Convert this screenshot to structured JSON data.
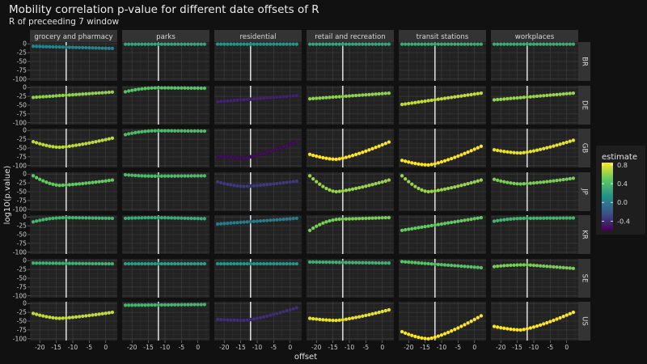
{
  "chart_data": {
    "type": "scatter",
    "title": "Mobility correlation p-value for different date offsets of R",
    "subtitle": "R of preceeding 7 window",
    "xlabel": "offset",
    "ylabel": "log10(p.value)",
    "x": [
      -22,
      -21,
      -20,
      -19,
      -18,
      -17,
      -16,
      -15,
      -14,
      -13,
      -12,
      -11,
      -10,
      -9,
      -8,
      -7,
      -6,
      -5,
      -4,
      -3,
      -2,
      -1,
      0,
      1,
      2
    ],
    "xlim": [
      -23,
      3.5
    ],
    "x_ticks": [
      -20,
      -15,
      -10,
      -5,
      0
    ],
    "x_tick_labels": [
      "-20",
      "-15",
      "-10",
      "-5",
      "0"
    ],
    "ylim": [
      -105,
      5
    ],
    "y_ticks": [
      0,
      -25,
      -50,
      -75,
      -100
    ],
    "y_tick_labels": [
      "0",
      "-25",
      "-50",
      "-75",
      "-100"
    ],
    "reference_line_x": -12,
    "grid": true,
    "columns": [
      "grocery and pharmacy",
      "parks",
      "residential",
      "retail and recreation",
      "transit stations",
      "workplaces"
    ],
    "rows": [
      "BR",
      "DE",
      "GB",
      "JP",
      "KR",
      "SE",
      "US"
    ],
    "color_scale": {
      "name": "estimate",
      "palette": "viridis",
      "ticks": [
        0.8,
        0.4,
        0.0,
        -0.4
      ],
      "tick_labels": [
        "0.8",
        "0.4",
        "0.0",
        "-0.4"
      ],
      "range": [
        -0.6,
        0.85
      ]
    },
    "panel_specs": {
      "BR": {
        "grocery and pharmacy": {
          "y": [
            -7,
            -13
          ],
          "est": 0.05,
          "shape": "line"
        },
        "parks": {
          "y": [
            -1,
            -1
          ],
          "est": 0.25,
          "shape": "line"
        },
        "residential": {
          "y": [
            -1,
            -1
          ],
          "est": 0.15,
          "shape": "line"
        },
        "retail and recreation": {
          "y": [
            -1,
            -1
          ],
          "est": 0.25,
          "shape": "line"
        },
        "transit stations": {
          "y": [
            -1,
            -1
          ],
          "est": 0.3,
          "shape": "line"
        },
        "workplaces": {
          "y": [
            -1,
            -1
          ],
          "est": 0.3,
          "shape": "line"
        }
      },
      "DE": {
        "grocery and pharmacy": {
          "y": [
            -28,
            -13
          ],
          "est": 0.6,
          "shape": "line"
        },
        "parks": {
          "y": [
            -12,
            -1,
            -2
          ],
          "est": 0.45,
          "shape": "rise"
        },
        "residential": {
          "y": [
            -40,
            -23
          ],
          "est": -0.45,
          "shape": "line"
        },
        "retail and recreation": {
          "y": [
            -32,
            -16
          ],
          "est": 0.6,
          "shape": "line"
        },
        "transit stations": {
          "y": [
            -48,
            -16
          ],
          "est": 0.72,
          "shape": "line"
        },
        "workplaces": {
          "y": [
            -35,
            -16
          ],
          "est": 0.62,
          "shape": "line"
        }
      },
      "GB": {
        "grocery and pharmacy": {
          "y": [
            -32,
            -48,
            -22
          ],
          "est": 0.7,
          "shape": "dip"
        },
        "parks": {
          "y": [
            -12,
            -1,
            -2
          ],
          "est": 0.4,
          "shape": "rise"
        },
        "residential": {
          "y": [
            -72,
            -78,
            -32
          ],
          "est": -0.55,
          "shape": "dip"
        },
        "retail and recreation": {
          "y": [
            -68,
            -82,
            -33
          ],
          "est": 0.85,
          "shape": "dip"
        },
        "transit stations": {
          "y": [
            -85,
            -98,
            -45
          ],
          "est": 0.85,
          "shape": "dip"
        },
        "workplaces": {
          "y": [
            -55,
            -64,
            -28
          ],
          "est": 0.8,
          "shape": "dip"
        }
      },
      "JP": {
        "grocery and pharmacy": {
          "y": [
            -5,
            -32,
            -17
          ],
          "est": 0.5,
          "shape": "dip"
        },
        "parks": {
          "y": [
            -2,
            -6,
            -5
          ],
          "est": 0.4,
          "shape": "dip"
        },
        "residential": {
          "y": [
            -22,
            -35,
            -20
          ],
          "est": -0.35,
          "shape": "dip"
        },
        "retail and recreation": {
          "y": [
            -5,
            -50,
            -17
          ],
          "est": 0.62,
          "shape": "dip"
        },
        "transit stations": {
          "y": [
            -5,
            -50,
            -17
          ],
          "est": 0.62,
          "shape": "dip"
        },
        "workplaces": {
          "y": [
            -15,
            -28,
            -12
          ],
          "est": 0.55,
          "shape": "dip"
        }
      },
      "KR": {
        "grocery and pharmacy": {
          "y": [
            -14,
            -2,
            -4
          ],
          "est": 0.35,
          "shape": "rise"
        },
        "parks": {
          "y": [
            -4,
            -2,
            -5
          ],
          "est": 0.3,
          "shape": "rise"
        },
        "residential": {
          "y": [
            -20,
            -4
          ],
          "est": 0.0,
          "shape": "line"
        },
        "retail and recreation": {
          "y": [
            -38,
            -6,
            -2
          ],
          "est": 0.55,
          "shape": "rise"
        },
        "transit stations": {
          "y": [
            -38,
            -2
          ],
          "est": 0.5,
          "shape": "line"
        },
        "workplaces": {
          "y": [
            -12,
            -4,
            -3
          ],
          "est": 0.35,
          "shape": "rise"
        }
      },
      "SE": {
        "grocery and pharmacy": {
          "y": [
            -7,
            -9
          ],
          "est": 0.32,
          "shape": "line"
        },
        "parks": {
          "y": [
            -9,
            -9
          ],
          "est": 0.2,
          "shape": "line"
        },
        "residential": {
          "y": [
            -9,
            -9
          ],
          "est": 0.15,
          "shape": "line"
        },
        "retail and recreation": {
          "y": [
            -4,
            -7
          ],
          "est": 0.32,
          "shape": "line"
        },
        "transit stations": {
          "y": [
            -3,
            -20
          ],
          "est": 0.45,
          "shape": "line"
        },
        "workplaces": {
          "y": [
            -17,
            -12,
            -22
          ],
          "est": 0.55,
          "shape": "rise"
        }
      },
      "US": {
        "grocery and pharmacy": {
          "y": [
            -28,
            -42,
            -25
          ],
          "est": 0.72,
          "shape": "dip"
        },
        "parks": {
          "y": [
            -5,
            -3
          ],
          "est": 0.35,
          "shape": "line"
        },
        "residential": {
          "y": [
            -45,
            -48,
            -12
          ],
          "est": -0.4,
          "shape": "dip"
        },
        "retail and recreation": {
          "y": [
            -42,
            -48,
            -18
          ],
          "est": 0.8,
          "shape": "dip"
        },
        "transit stations": {
          "y": [
            -80,
            -100,
            -35
          ],
          "est": 0.85,
          "shape": "dip"
        },
        "workplaces": {
          "y": [
            -65,
            -75,
            -25
          ],
          "est": 0.85,
          "shape": "dip"
        }
      }
    }
  }
}
